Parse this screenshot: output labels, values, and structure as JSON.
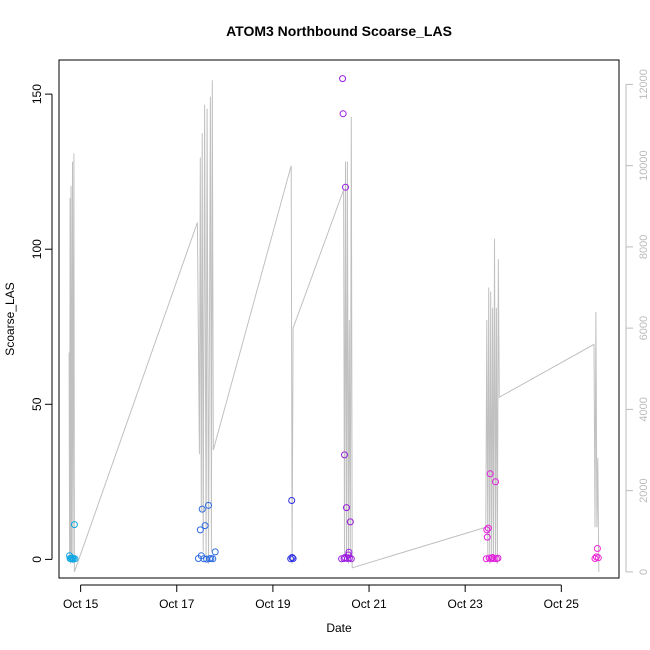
{
  "chart_data": {
    "type": "scatter",
    "title": "ATOM3 Northbound Scoarse_LAS",
    "xlabel": "Date",
    "ylabel": "Scoarse_LAS",
    "left_axis": {
      "ylim": [
        -6,
        161
      ],
      "ticks": [
        0,
        50,
        100,
        150
      ]
    },
    "right_axis": {
      "ylim": [
        -150,
        12600
      ],
      "ticks": [
        0,
        2000,
        4000,
        6000,
        8000,
        10000,
        12000
      ],
      "color": "#bbbbbb"
    },
    "xlim": [
      14.55,
      26.2
    ],
    "x_ticks": [
      {
        "value": 15,
        "label": "Oct 15"
      },
      {
        "value": 17,
        "label": "Oct 17"
      },
      {
        "value": 19,
        "label": "Oct 19"
      },
      {
        "value": 21,
        "label": "Oct 21"
      },
      {
        "value": 23,
        "label": "Oct 23"
      },
      {
        "value": 25,
        "label": "Oct 25"
      }
    ],
    "grid": false,
    "line_series": {
      "color": "#c0c0c0",
      "axis": "right",
      "points": [
        [
          14.76,
          5400
        ],
        [
          14.77,
          300
        ],
        [
          14.78,
          9200
        ],
        [
          14.79,
          200
        ],
        [
          14.8,
          9500
        ],
        [
          14.81,
          300
        ],
        [
          14.83,
          10100
        ],
        [
          14.84,
          300
        ],
        [
          14.86,
          10300
        ],
        [
          14.87,
          0
        ],
        [
          17.43,
          8600
        ],
        [
          17.47,
          2900
        ],
        [
          17.49,
          10200
        ],
        [
          17.51,
          1500
        ],
        [
          17.53,
          10800
        ],
        [
          17.55,
          500
        ],
        [
          17.58,
          11500
        ],
        [
          17.61,
          300
        ],
        [
          17.63,
          11400
        ],
        [
          17.66,
          200
        ],
        [
          17.7,
          11700
        ],
        [
          17.72,
          500
        ],
        [
          17.74,
          12100
        ],
        [
          17.76,
          3000
        ],
        [
          19.38,
          10000
        ],
        [
          19.4,
          200
        ],
        [
          19.42,
          6000
        ],
        [
          20.47,
          9400
        ],
        [
          20.49,
          400
        ],
        [
          20.51,
          10100
        ],
        [
          20.53,
          300
        ],
        [
          20.55,
          10100
        ],
        [
          20.57,
          200
        ],
        [
          20.59,
          6200
        ],
        [
          20.61,
          300
        ],
        [
          20.63,
          11200
        ],
        [
          20.65,
          100
        ],
        [
          23.43,
          1100
        ],
        [
          23.45,
          6200
        ],
        [
          23.47,
          300
        ],
        [
          23.49,
          7000
        ],
        [
          23.51,
          200
        ],
        [
          23.53,
          6900
        ],
        [
          23.55,
          400
        ],
        [
          23.57,
          6500
        ],
        [
          23.59,
          300
        ],
        [
          23.61,
          8200
        ],
        [
          23.63,
          300
        ],
        [
          23.65,
          6500
        ],
        [
          23.67,
          200
        ],
        [
          23.69,
          7700
        ],
        [
          23.71,
          4300
        ],
        [
          25.68,
          5600
        ],
        [
          25.7,
          1100
        ],
        [
          25.72,
          6400
        ],
        [
          25.74,
          1100
        ],
        [
          25.76,
          2800
        ],
        [
          25.78,
          0
        ]
      ]
    },
    "points": [
      {
        "x": 14.77,
        "y": 1.2,
        "color": "#0fa7e6"
      },
      {
        "x": 14.78,
        "y": 0.3,
        "color": "#0fa7e6"
      },
      {
        "x": 14.8,
        "y": 0.2,
        "color": "#0fa7e6"
      },
      {
        "x": 14.82,
        "y": 0.4,
        "color": "#0fa7e6"
      },
      {
        "x": 14.84,
        "y": 0.1,
        "color": "#0fa7e6"
      },
      {
        "x": 14.85,
        "y": 0.3,
        "color": "#0fa7e6"
      },
      {
        "x": 14.87,
        "y": 11.2,
        "color": "#0fa7e6"
      },
      {
        "x": 14.88,
        "y": 0.2,
        "color": "#0fa7e6"
      },
      {
        "x": 17.45,
        "y": 0.3,
        "color": "#2f6de0"
      },
      {
        "x": 17.49,
        "y": 9.5,
        "color": "#2f6de0"
      },
      {
        "x": 17.51,
        "y": 1.2,
        "color": "#2f6de0"
      },
      {
        "x": 17.53,
        "y": 16.2,
        "color": "#2f6de0"
      },
      {
        "x": 17.56,
        "y": 0.2,
        "color": "#2f6de0"
      },
      {
        "x": 17.59,
        "y": 10.9,
        "color": "#2f6de0"
      },
      {
        "x": 17.62,
        "y": 0.1,
        "color": "#2f6de0"
      },
      {
        "x": 17.66,
        "y": 17.4,
        "color": "#2f6de0"
      },
      {
        "x": 17.68,
        "y": 0.2,
        "color": "#2f6de0"
      },
      {
        "x": 17.71,
        "y": 0.3,
        "color": "#2f6de0"
      },
      {
        "x": 17.75,
        "y": 0.2,
        "color": "#2f6de0"
      },
      {
        "x": 17.8,
        "y": 2.4,
        "color": "#2f6de0"
      },
      {
        "x": 19.37,
        "y": 0.2,
        "color": "#2c2ee6"
      },
      {
        "x": 19.39,
        "y": 19.0,
        "color": "#2c2ee6"
      },
      {
        "x": 19.4,
        "y": 0.6,
        "color": "#2c2ee6"
      },
      {
        "x": 19.42,
        "y": 0.3,
        "color": "#2c2ee6"
      },
      {
        "x": 20.43,
        "y": 0.2,
        "color": "#9b1de0"
      },
      {
        "x": 20.45,
        "y": 155.0,
        "color": "#9b1de0"
      },
      {
        "x": 20.46,
        "y": 143.7,
        "color": "#9b1de0"
      },
      {
        "x": 20.48,
        "y": 0.3,
        "color": "#9b1de0"
      },
      {
        "x": 20.49,
        "y": 33.7,
        "color": "#9b1de0"
      },
      {
        "x": 20.5,
        "y": 0.6,
        "color": "#9b1de0"
      },
      {
        "x": 20.51,
        "y": 120.0,
        "color": "#9b1de0"
      },
      {
        "x": 20.53,
        "y": 16.7,
        "color": "#9b1de0"
      },
      {
        "x": 20.55,
        "y": 0.3,
        "color": "#9b1de0"
      },
      {
        "x": 20.57,
        "y": 1.4,
        "color": "#9b1de0"
      },
      {
        "x": 20.58,
        "y": 2.3,
        "color": "#9b1de0"
      },
      {
        "x": 20.59,
        "y": 0.4,
        "color": "#9b1de0"
      },
      {
        "x": 20.61,
        "y": 12.1,
        "color": "#9b1de0"
      },
      {
        "x": 20.63,
        "y": 0.2,
        "color": "#9b1de0"
      },
      {
        "x": 23.44,
        "y": 0.2,
        "color": "#e21fdc"
      },
      {
        "x": 23.45,
        "y": 9.5,
        "color": "#e21fdc"
      },
      {
        "x": 23.46,
        "y": 7.2,
        "color": "#e21fdc"
      },
      {
        "x": 23.48,
        "y": 10.1,
        "color": "#e21fdc"
      },
      {
        "x": 23.5,
        "y": 0.4,
        "color": "#e21fdc"
      },
      {
        "x": 23.52,
        "y": 27.6,
        "color": "#e21fdc"
      },
      {
        "x": 23.54,
        "y": 0.2,
        "color": "#e21fdc"
      },
      {
        "x": 23.57,
        "y": 0.6,
        "color": "#e21fdc"
      },
      {
        "x": 23.6,
        "y": 0.3,
        "color": "#e21fdc"
      },
      {
        "x": 23.63,
        "y": 25.0,
        "color": "#e21fdc"
      },
      {
        "x": 23.65,
        "y": 0.2,
        "color": "#e21fdc"
      },
      {
        "x": 23.68,
        "y": 0.4,
        "color": "#e21fdc"
      },
      {
        "x": 25.7,
        "y": 0.3,
        "color": "#ee22d6"
      },
      {
        "x": 25.73,
        "y": 0.8,
        "color": "#ee22d6"
      },
      {
        "x": 25.75,
        "y": 3.5,
        "color": "#ee22d6"
      },
      {
        "x": 25.77,
        "y": 0.5,
        "color": "#ee22d6"
      }
    ]
  }
}
